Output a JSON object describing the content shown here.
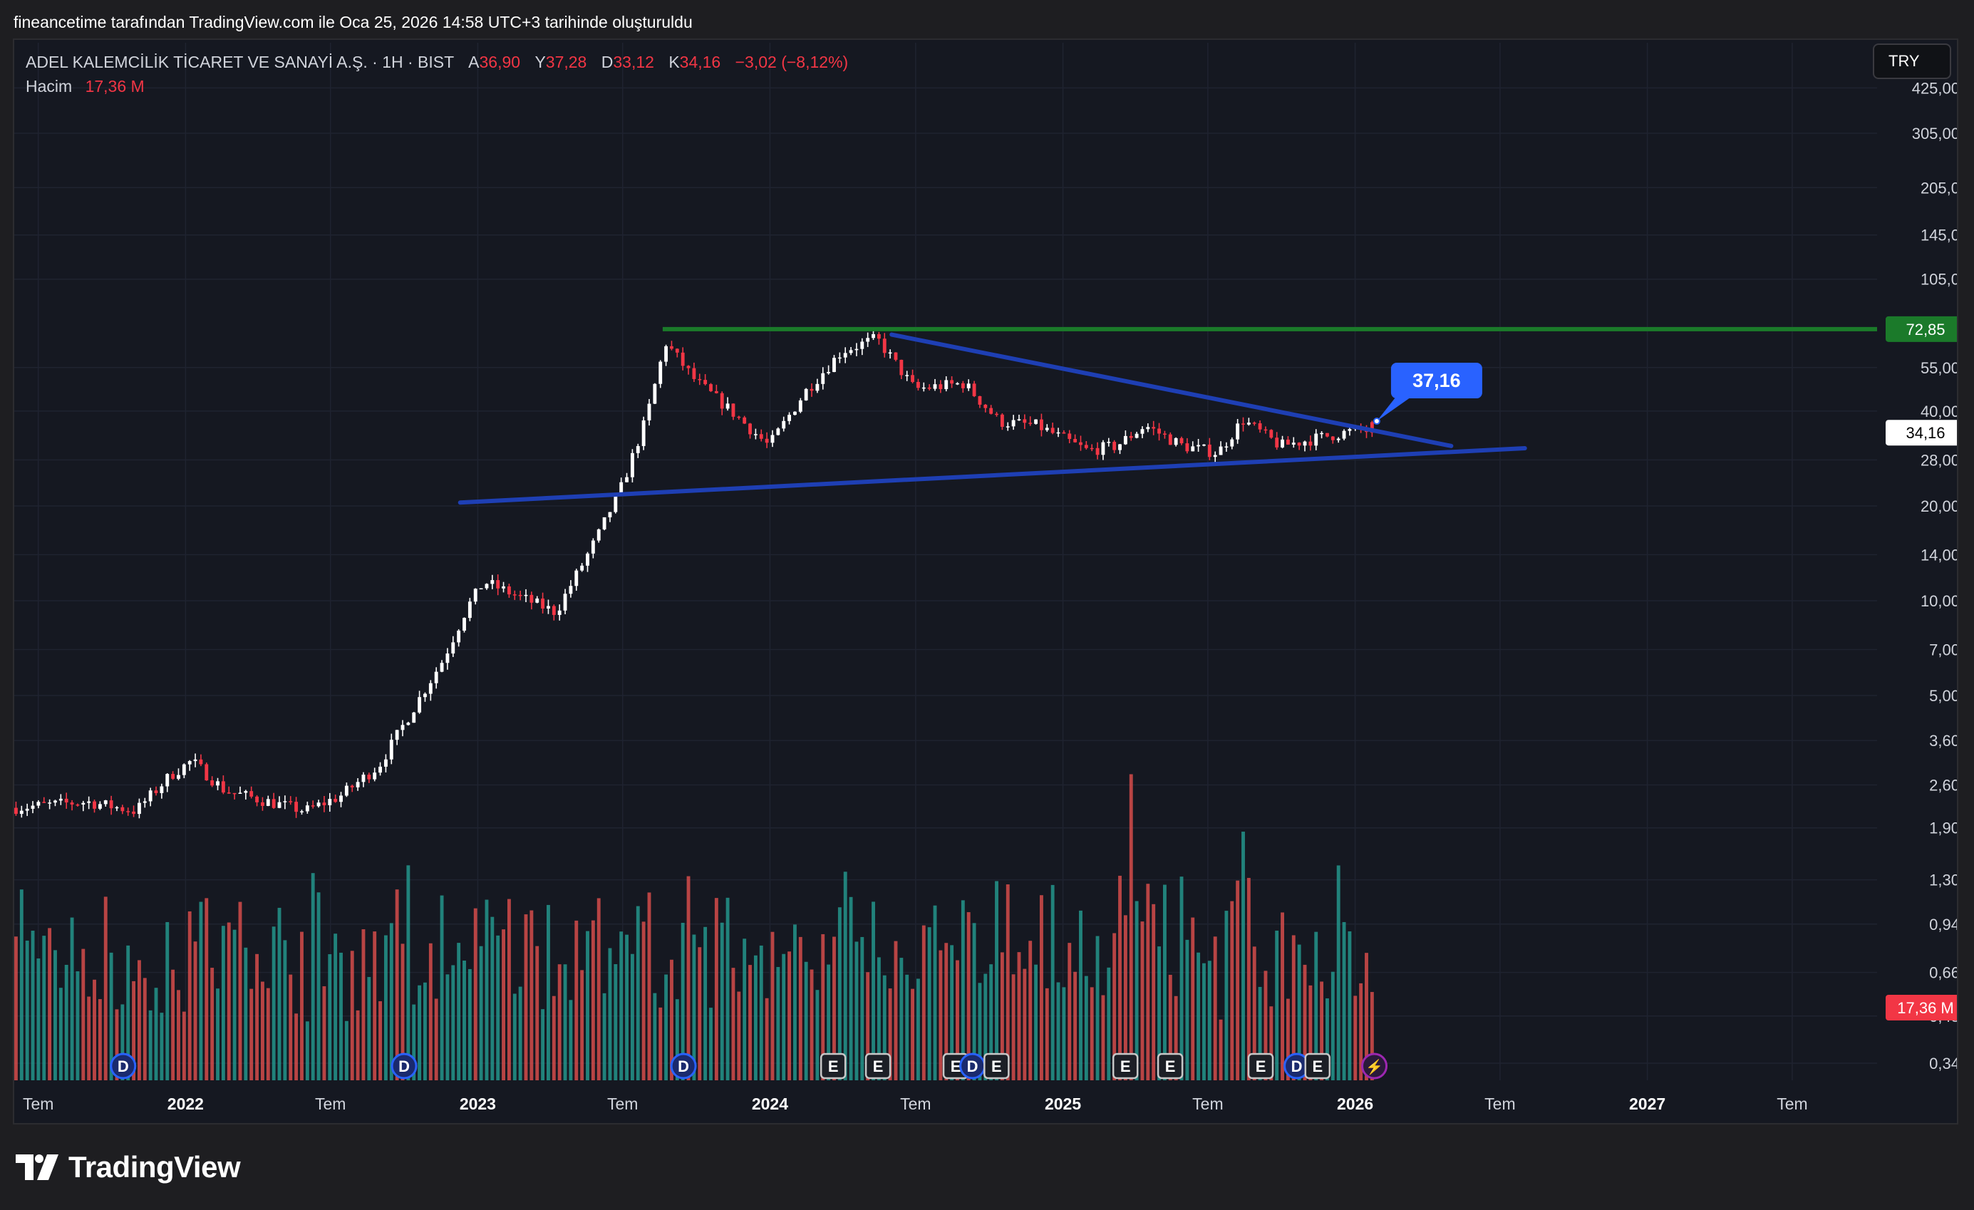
{
  "header": {
    "attribution": "fineancetime tarafından TradingView.com ile Oca 25, 2026 14:58 UTC+3 tarihinde oluşturuldu"
  },
  "legend": {
    "symbol": "ADEL KALEMCİLİK TİCARET VE SANAYİ A.Ş. · 1H · BIST",
    "open_label": "A",
    "open": "36,90",
    "high_label": "Y",
    "high": "37,28",
    "low_label": "D",
    "low": "33,12",
    "close_label": "K",
    "close": "34,16",
    "change": "−3,02 (−8,12%)",
    "volume_label": "Hacim",
    "volume": "17,36 M"
  },
  "currency": "TRY",
  "brand": {
    "name": "TradingView"
  },
  "colors": {
    "background": "#151821",
    "up": "#ffffff",
    "down": "#f23645",
    "vol_up": "#26a69a",
    "vol_down": "#ef5350",
    "trendline": "#1e3fb4",
    "resistance": "#1b7a2a",
    "callout": "#2962ff"
  },
  "chart_data": {
    "type": "candlestick",
    "symbol": "ADEL",
    "exchange": "BIST",
    "interval": "1H",
    "y_scale": "log",
    "x_axis_ticks": [
      "Tem",
      "2022",
      "Tem",
      "2023",
      "Tem",
      "2024",
      "Tem",
      "2025",
      "Tem",
      "2026",
      "Tem",
      "2027",
      "Tem"
    ],
    "y_axis_ticks": [
      "425,00",
      "305,00",
      "205,0",
      "145,0",
      "105,0",
      "72,85",
      "55,00",
      "40,00",
      "34,16",
      "28,00",
      "20,00",
      "14,00",
      "10,00",
      "7,00",
      "5,00",
      "3,60",
      "2,60",
      "1,90",
      "1,30",
      "0,94",
      "0,66",
      "0,48",
      "0,34"
    ],
    "y_tick_values": [
      425,
      305,
      205,
      145,
      105,
      55,
      40,
      28,
      20,
      14,
      10,
      7,
      5,
      3.6,
      2.6,
      1.9,
      1.3,
      0.94,
      0.66,
      0.48,
      0.34
    ],
    "ylim": [
      0.3,
      480
    ],
    "xlim": [
      "2021-06-01",
      "2027-10-15"
    ],
    "price_path": [
      [
        "2021-06-01",
        2.2
      ],
      [
        "2021-09-01",
        2.3
      ],
      [
        "2021-11-01",
        2.15
      ],
      [
        "2021-12-15",
        2.8
      ],
      [
        "2022-01-10",
        3.1
      ],
      [
        "2022-02-20",
        2.5
      ],
      [
        "2022-04-01",
        2.35
      ],
      [
        "2022-06-01",
        2.15
      ],
      [
        "2022-07-15",
        2.4
      ],
      [
        "2022-09-01",
        3.0
      ],
      [
        "2022-10-15",
        4.6
      ],
      [
        "2022-11-20",
        6.5
      ],
      [
        "2022-12-20",
        9.5
      ],
      [
        "2023-01-10",
        11.5
      ],
      [
        "2023-02-15",
        10.5
      ],
      [
        "2023-04-10",
        9.2
      ],
      [
        "2023-05-01",
        11.5
      ],
      [
        "2023-06-01",
        16.0
      ],
      [
        "2023-07-01",
        23.0
      ],
      [
        "2023-08-01",
        38.0
      ],
      [
        "2023-08-25",
        66.0
      ],
      [
        "2023-10-01",
        50.0
      ],
      [
        "2023-11-15",
        40.0
      ],
      [
        "2024-01-01",
        31.0
      ],
      [
        "2024-02-15",
        46.0
      ],
      [
        "2024-04-01",
        62.0
      ],
      [
        "2024-05-15",
        68.0
      ],
      [
        "2024-07-01",
        47.0
      ],
      [
        "2024-09-01",
        49.0
      ],
      [
        "2024-10-15",
        37.0
      ],
      [
        "2024-12-01",
        36.0
      ],
      [
        "2025-02-01",
        30.0
      ],
      [
        "2025-03-10",
        31.0
      ],
      [
        "2025-04-15",
        36.0
      ],
      [
        "2025-06-01",
        31.0
      ],
      [
        "2025-07-15",
        29.5
      ],
      [
        "2025-08-15",
        37.5
      ],
      [
        "2025-10-01",
        31.0
      ],
      [
        "2025-11-20",
        33.0
      ],
      [
        "2026-01-10",
        35.0
      ],
      [
        "2026-01-25",
        34.16
      ]
    ],
    "last_candle": {
      "open": 36.9,
      "high": 37.28,
      "low": 33.12,
      "close": 34.16
    },
    "volume_peaks": [
      [
        "2022-09-15",
        1.25
      ],
      [
        "2023-01-01",
        1.15
      ],
      [
        "2023-08-01",
        1.1
      ],
      [
        "2024-04-01",
        1.3
      ],
      [
        "2024-10-15",
        1.2
      ],
      [
        "2025-03-20",
        1.6
      ],
      [
        "2025-08-10",
        2.1
      ],
      [
        "2026-01-20",
        0.94
      ]
    ],
    "horizontal_line": {
      "price": 72.85,
      "from": "2023-08-20",
      "label": "72,85"
    },
    "trendlines": [
      {
        "name": "",
        "from": [
          "2024-06-01",
          70.0
        ],
        "to": [
          "2026-05-01",
          31.0
        ]
      },
      {
        "name": "",
        "from": [
          "2022-12-10",
          20.5
        ],
        "to": [
          "2026-08-01",
          30.5
        ]
      }
    ],
    "price_label": {
      "value": "34,16"
    },
    "volume_price_label": {
      "value": "17,36 M"
    },
    "callout": {
      "text": "37,16",
      "date": "2026-01-28",
      "price": 37.16
    },
    "event_markers": [
      {
        "type": "D",
        "date": "2021-10-15"
      },
      {
        "type": "D",
        "date": "2022-10-01"
      },
      {
        "type": "D",
        "date": "2023-09-15"
      },
      {
        "type": "E",
        "date": "2024-03-20"
      },
      {
        "type": "E",
        "date": "2024-05-15"
      },
      {
        "type": "E",
        "date": "2024-08-20"
      },
      {
        "type": "D",
        "date": "2024-09-10"
      },
      {
        "type": "E",
        "date": "2024-10-10"
      },
      {
        "type": "E",
        "date": "2025-03-20"
      },
      {
        "type": "E",
        "date": "2025-05-15"
      },
      {
        "type": "E",
        "date": "2025-09-05"
      },
      {
        "type": "D",
        "date": "2025-10-20"
      },
      {
        "type": "E",
        "date": "2025-11-15"
      },
      {
        "type": "split",
        "date": "2026-01-25"
      }
    ]
  }
}
